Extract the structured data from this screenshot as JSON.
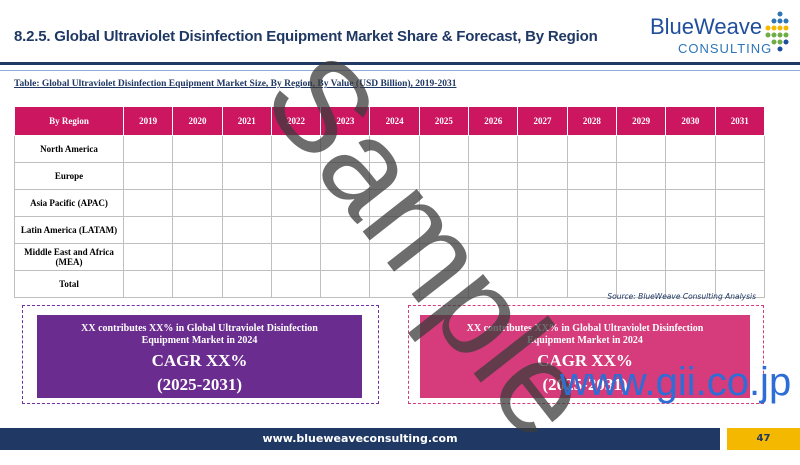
{
  "header": {
    "title": "8.2.5. Global Ultraviolet Disinfection Equipment Market Share & Forecast, By Region",
    "logo": {
      "name": "BlueWeave",
      "sub": "CONSULTING"
    }
  },
  "table": {
    "caption": "Table: Global Ultraviolet Disinfection Equipment Market Size, By Region, By Value (USD Billion), 2019-2031",
    "columns": [
      "By Region",
      "2019",
      "2020",
      "2021",
      "2022",
      "2023",
      "2024",
      "2025",
      "2026",
      "2027",
      "2028",
      "2029",
      "2030",
      "2031"
    ],
    "rows": [
      "North America",
      "Europe",
      "Asia Pacific (APAC)",
      "Latin America (LATAM)",
      "Middle East and Africa (MEA)",
      "Total"
    ],
    "source": "Source: BlueWeave Consulting Analysis"
  },
  "boxes": [
    {
      "text": "XX contributes XX% in Global Ultraviolet Disinfection Equipment Market in 2024",
      "cagr": "CAGR XX%",
      "period": "(2025-2031)"
    },
    {
      "text": "XX contributes XX% in Global Ultraviolet Disinfection Equipment Market in 2024",
      "cagr": "CAGR XX%",
      "period": "(2025-2031)"
    }
  ],
  "footer": {
    "url": "www.blueweaveconsulting.com",
    "page": "47"
  },
  "watermarks": [
    "Sample",
    "www.gii.co.jp"
  ]
}
